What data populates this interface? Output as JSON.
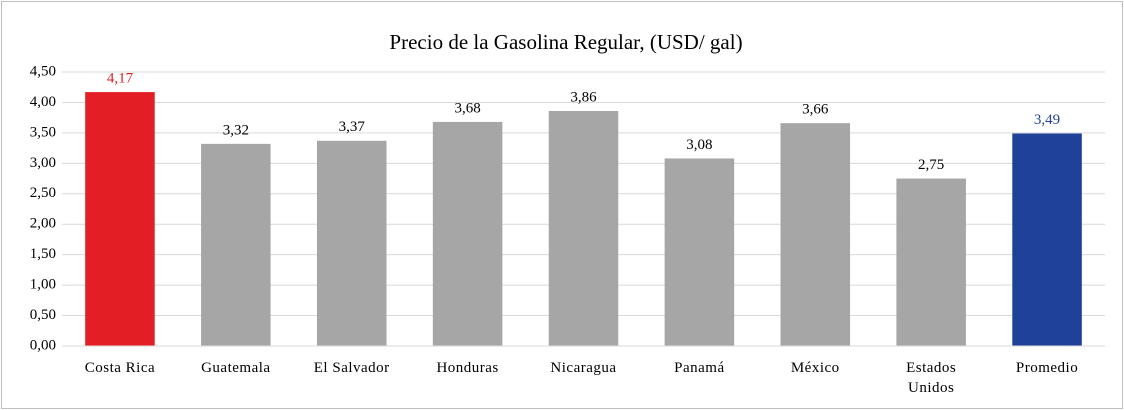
{
  "chart_data": {
    "type": "bar",
    "title": "Precio de la Gasolina Regular, (USD/ gal)",
    "categories": [
      "Costa Rica",
      "Guatemala",
      "El Salvador",
      "Honduras",
      "Nicaragua",
      "Panamá",
      "México",
      "Estados Unidos",
      "Promedio"
    ],
    "values": [
      4.17,
      3.32,
      3.37,
      3.68,
      3.86,
      3.08,
      3.66,
      2.75,
      3.49
    ],
    "value_labels": [
      "4,17",
      "3,32",
      "3,37",
      "3,68",
      "3,86",
      "3,08",
      "3,66",
      "2,75",
      "3,49"
    ],
    "colors": [
      "#e31e24",
      "#a6a6a6",
      "#a6a6a6",
      "#a6a6a6",
      "#a6a6a6",
      "#a6a6a6",
      "#a6a6a6",
      "#a6a6a6",
      "#1f4197"
    ],
    "value_label_colors": [
      "#e31e24",
      "#000000",
      "#000000",
      "#000000",
      "#000000",
      "#000000",
      "#000000",
      "#000000",
      "#1f4197"
    ],
    "ylim": [
      0,
      4.5
    ],
    "yticks": [
      {
        "value": 0,
        "label": "0,00"
      },
      {
        "value": 0.5,
        "label": "0,50"
      },
      {
        "value": 1,
        "label": "1,00"
      },
      {
        "value": 1.5,
        "label": "1,50"
      },
      {
        "value": 2,
        "label": "2,00"
      },
      {
        "value": 2.5,
        "label": "2,50"
      },
      {
        "value": 3,
        "label": "3,00"
      },
      {
        "value": 3.5,
        "label": "3,50"
      },
      {
        "value": 4,
        "label": "4,00"
      },
      {
        "value": 4.5,
        "label": "4,50"
      }
    ],
    "grid": true
  }
}
